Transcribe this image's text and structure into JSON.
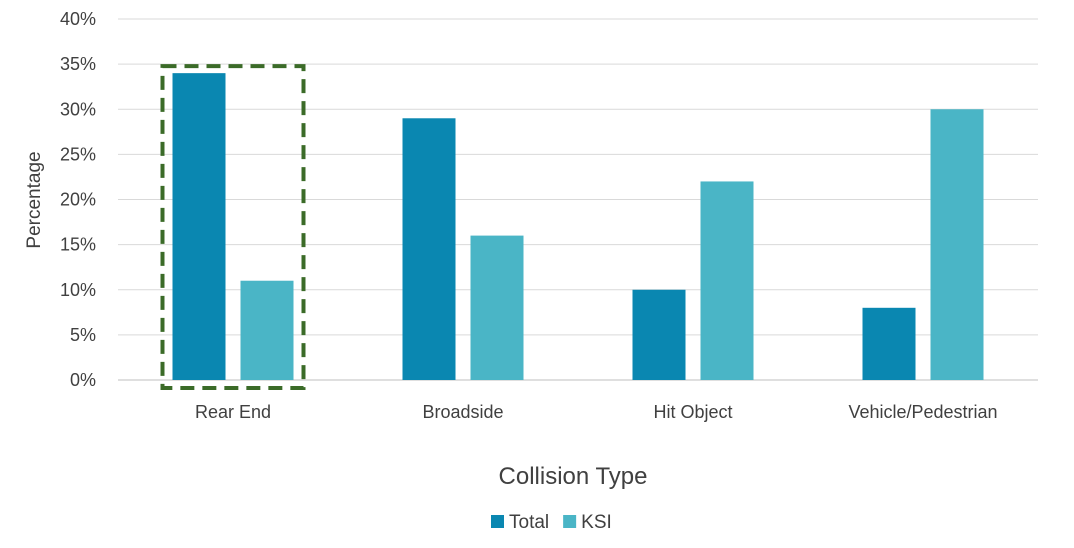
{
  "chart_data": {
    "type": "bar",
    "title": "",
    "xlabel": "Collision Type",
    "ylabel": "Percentage",
    "ylim": [
      0,
      40
    ],
    "yticks": [
      0,
      5,
      10,
      15,
      20,
      25,
      30,
      35,
      40
    ],
    "ytick_labels": [
      "0%",
      "5%",
      "10%",
      "15%",
      "20%",
      "25%",
      "30%",
      "35%",
      "40%"
    ],
    "categories": [
      "Rear End",
      "Broadside",
      "Hit Object",
      "Vehicle/Pedestrian"
    ],
    "series": [
      {
        "name": "Total",
        "values": [
          34,
          29,
          10,
          8
        ],
        "color": "#0a87b1"
      },
      {
        "name": "KSI",
        "values": [
          11,
          16,
          22,
          30
        ],
        "color": "#4ab5c6"
      }
    ],
    "grid": true,
    "legend_position": "bottom",
    "highlight": {
      "category": "Rear End",
      "style": "dashed-box",
      "color": "#3b6b28"
    }
  }
}
